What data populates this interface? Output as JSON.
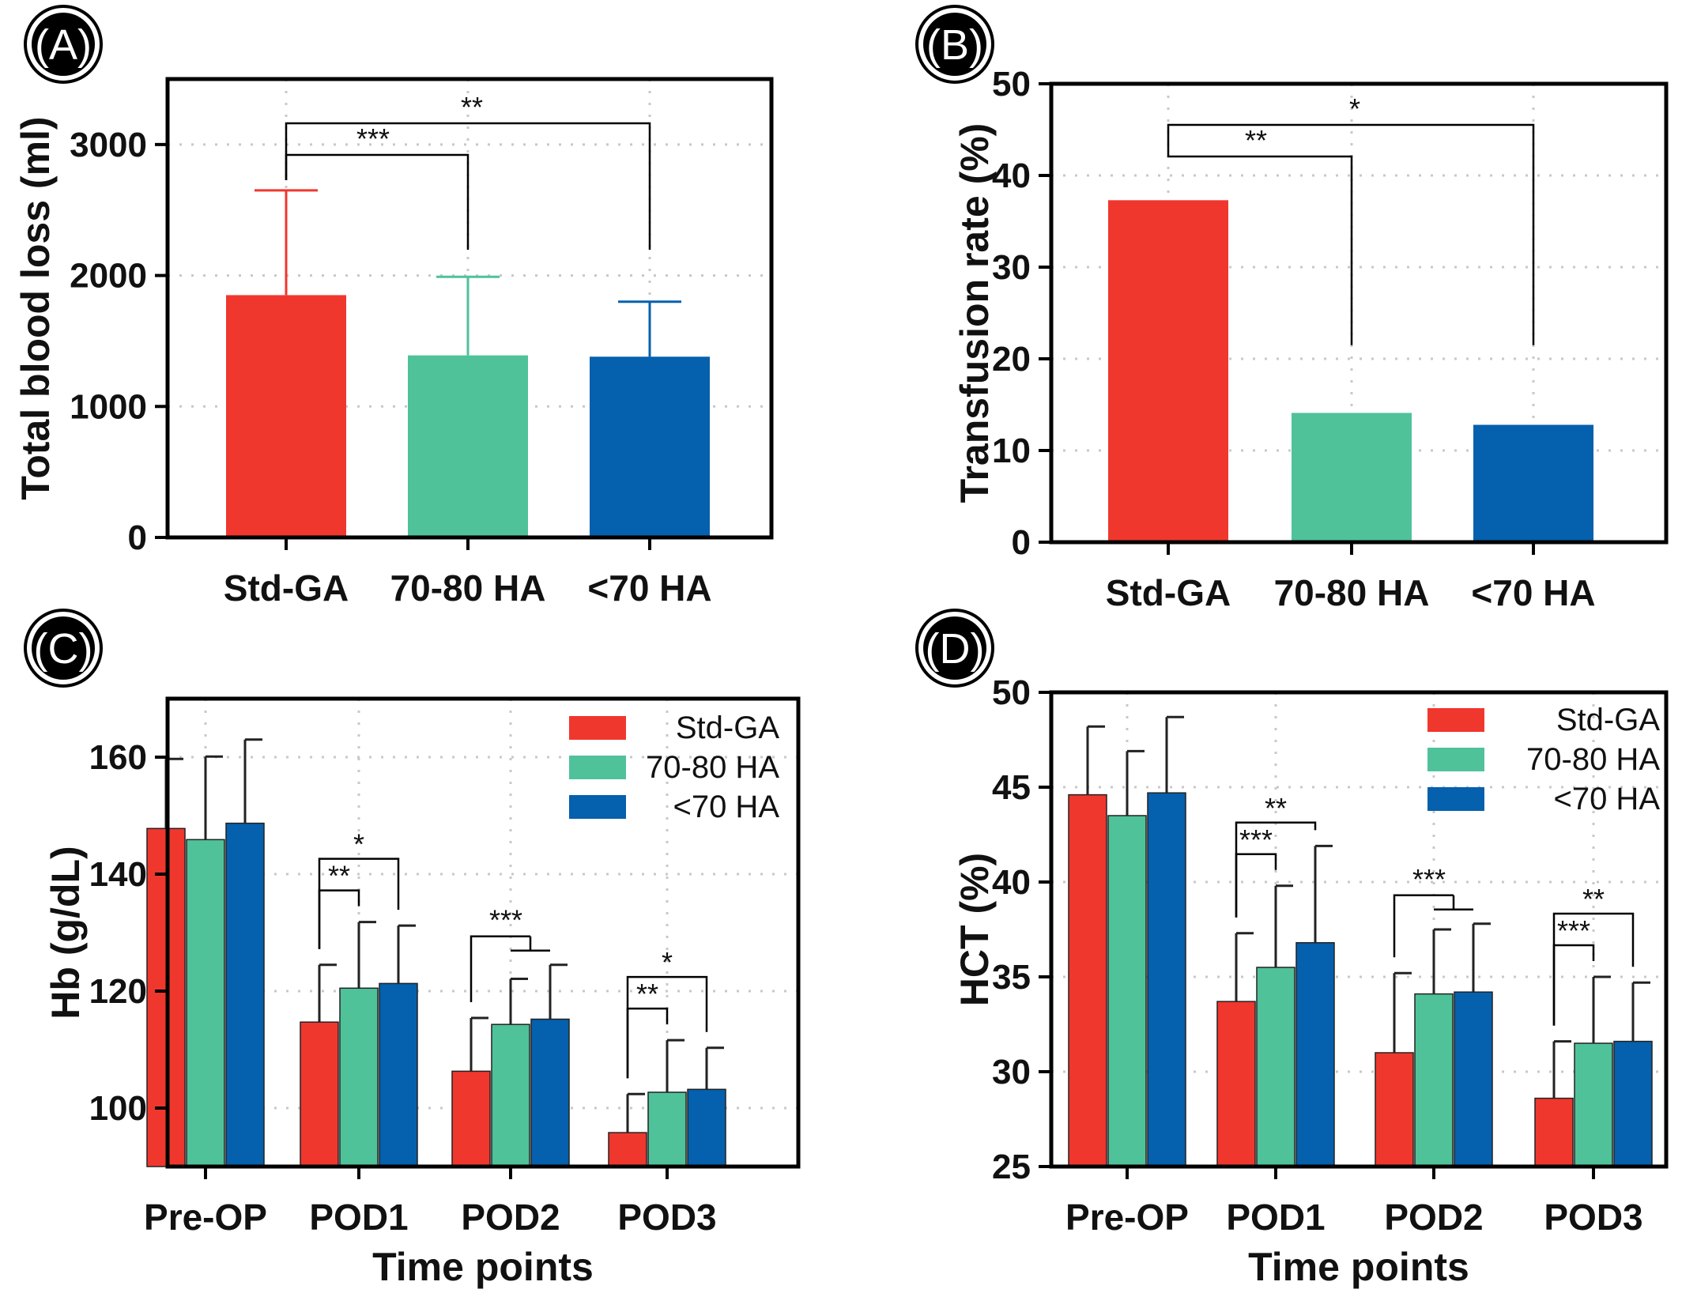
{
  "colors": {
    "Std-GA": "#f0372e",
    "70-80 HA": "#4fc29a",
    "<70 HA": "#0560ad"
  },
  "chart_data": [
    {
      "panel": "(A)",
      "type": "bar",
      "categories": [
        "Std-GA",
        "70-80 HA",
        "<70 HA"
      ],
      "values": [
        1850,
        1390,
        1380
      ],
      "errors": [
        800,
        600,
        420
      ],
      "ylabel": "Total blood loss (ml)",
      "xlabel": "",
      "ylim": [
        0,
        3500
      ],
      "yticks": [
        0,
        1000,
        2000,
        3000
      ],
      "grid": true,
      "significance": [
        {
          "from": 0,
          "to": 1,
          "label": "***"
        },
        {
          "from": 0,
          "to": 2,
          "label": "**"
        }
      ]
    },
    {
      "panel": "(B)",
      "type": "bar",
      "categories": [
        "Std-GA",
        "70-80 HA",
        "<70 HA"
      ],
      "values": [
        37.3,
        14.1,
        12.8
      ],
      "ylabel": "Transfusion rate (%)",
      "xlabel": "",
      "ylim": [
        0,
        50
      ],
      "yticks": [
        0,
        10,
        20,
        30,
        40,
        50
      ],
      "grid": true,
      "significance": [
        {
          "from": 0,
          "to": 1,
          "label": "**"
        },
        {
          "from": 0,
          "to": 2,
          "label": "*"
        }
      ]
    },
    {
      "panel": "(C)",
      "type": "bar",
      "categories": [
        "Pre-OP",
        "POD1",
        "POD2",
        "POD3"
      ],
      "series": [
        {
          "name": "Std-GA",
          "values": [
            147.8,
            114.7,
            106.3,
            95.8
          ],
          "errors": [
            11.9,
            9.8,
            9.1,
            6.6
          ]
        },
        {
          "name": "70-80 HA",
          "values": [
            145.9,
            120.5,
            114.3,
            102.7
          ],
          "errors": [
            14.2,
            11.3,
            7.8,
            8.9
          ]
        },
        {
          "name": "<70 HA",
          "values": [
            148.7,
            121.3,
            115.2,
            103.2
          ],
          "errors": [
            14.3,
            9.9,
            9.3,
            7.1
          ]
        }
      ],
      "ylabel": "Hb (g/dL)",
      "xlabel": "Time points",
      "ylim": [
        90,
        170
      ],
      "yticks": [
        100,
        120,
        140,
        160
      ],
      "grid": true,
      "legend": "top-right",
      "significance": [
        {
          "group": 1,
          "to": "70-80 HA",
          "label": "**"
        },
        {
          "group": 1,
          "to": "<70 HA",
          "label": "*"
        },
        {
          "group": 2,
          "to": "both",
          "label": "***"
        },
        {
          "group": 3,
          "to": "70-80 HA",
          "label": "**"
        },
        {
          "group": 3,
          "to": "<70 HA",
          "label": "*"
        }
      ]
    },
    {
      "panel": "(D)",
      "type": "bar",
      "categories": [
        "Pre-OP",
        "POD1",
        "POD2",
        "POD3"
      ],
      "series": [
        {
          "name": "Std-GA",
          "values": [
            44.6,
            33.7,
            31.0,
            28.6
          ],
          "errors": [
            3.6,
            3.6,
            4.2,
            3.0
          ]
        },
        {
          "name": "70-80 HA",
          "values": [
            43.5,
            35.5,
            34.1,
            31.5
          ],
          "errors": [
            3.4,
            4.3,
            3.4,
            3.5
          ]
        },
        {
          "name": "<70 HA",
          "values": [
            44.7,
            36.8,
            34.2,
            31.6
          ],
          "errors": [
            4.0,
            5.1,
            3.6,
            3.1
          ]
        }
      ],
      "ylabel": "HCT (%)",
      "xlabel": "Time points",
      "ylim": [
        25,
        50
      ],
      "yticks": [
        25,
        30,
        35,
        40,
        45,
        50
      ],
      "grid": true,
      "legend": "top-right",
      "significance": [
        {
          "group": 1,
          "to": "70-80 HA",
          "label": "***"
        },
        {
          "group": 1,
          "to": "<70 HA",
          "label": "**"
        },
        {
          "group": 2,
          "to": "both",
          "label": "***"
        },
        {
          "group": 3,
          "to": "70-80 HA",
          "label": "***"
        },
        {
          "group": 3,
          "to": "<70 HA",
          "label": "**"
        }
      ]
    }
  ]
}
